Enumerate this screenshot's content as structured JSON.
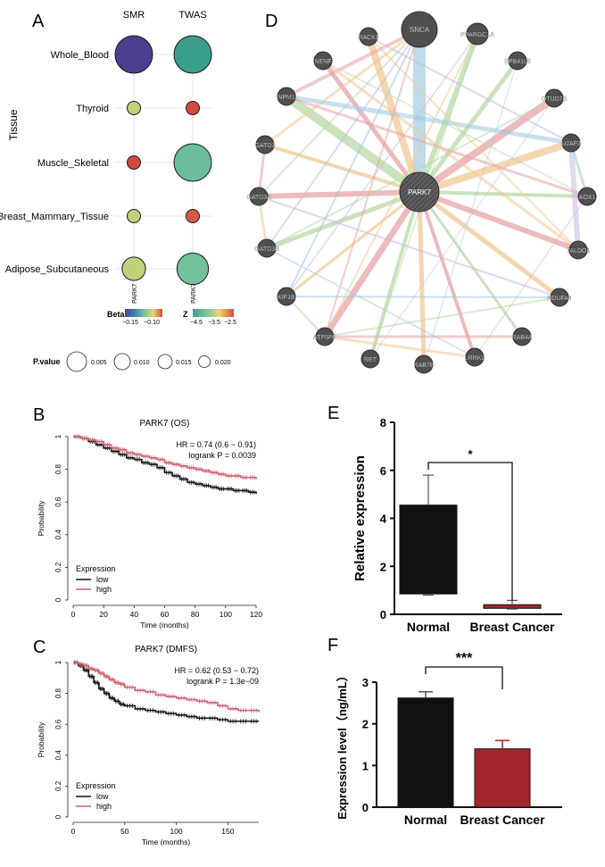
{
  "colors": {
    "black": "#111111",
    "pink": "#c9636e",
    "darkred": "#a3252d",
    "node": "#4f4f4f",
    "beta_low": "#4b3f8f",
    "beta_high": "#d2493f",
    "z_low": "#3a9e8c",
    "z_high": "#d2493f"
  },
  "panels": {
    "a": "A",
    "b": "B",
    "c": "C",
    "d": "D",
    "e": "E",
    "f": "F"
  },
  "legend_a": {
    "beta_title": "Beta",
    "beta_ticks": [
      "−0.15",
      "−0.10"
    ],
    "z_title": "Z",
    "z_ticks": [
      "−4.5",
      "−3.5",
      "−2.5"
    ],
    "p_title": "P.value",
    "p_values": [
      "0.005",
      "0.010",
      "0.015",
      "0.020"
    ]
  },
  "chart_data": [
    {
      "panel": "A",
      "type": "scatter",
      "xlabel": "",
      "ylabel": "Tissue",
      "x": [
        "SMR",
        "TWAS"
      ],
      "categories": [
        "Whole_Blood",
        "Thyroid",
        "Muscle_Skeletal",
        "Breast_Mammary_Tissue",
        "Adipose_Subcutaneous"
      ],
      "gene_labels": [
        "PARK7",
        "PARK7"
      ],
      "series": [
        {
          "name": "SMR",
          "size_p": [
            0.005,
            0.017,
            0.017,
            0.017,
            0.012
          ],
          "color_value": [
            -0.17,
            -0.11,
            -0.08,
            -0.11,
            -0.11
          ]
        },
        {
          "name": "TWAS",
          "size_p": [
            0.005,
            0.017,
            0.005,
            0.017,
            0.008
          ],
          "color_value": [
            -4.8,
            -2.5,
            -4.2,
            -2.6,
            -4.1
          ]
        }
      ]
    },
    {
      "panel": "D",
      "type": "network",
      "center": "PARK7",
      "nodes": [
        "SNCA",
        "PPARGC1A",
        "EPB41L5",
        "OTUD7B",
        "U2AF2",
        "AOX1",
        "TALDO1",
        "NDUFA4",
        "RAB4A",
        "LRRK2",
        "RAB7B",
        "RET",
        "ATP5PF",
        "KIF1B",
        "GATD3B",
        "GATD3A",
        "GATD1",
        "NPM1",
        "NENF",
        "RACK1"
      ]
    },
    {
      "panel": "B",
      "type": "line",
      "title": "PARK7 (OS)",
      "xlabel": "Time (months)",
      "ylabel": "Probability",
      "xlim": [
        0,
        120
      ],
      "ylim": [
        0,
        1
      ],
      "xticks": [
        0,
        20,
        40,
        60,
        80,
        100,
        120
      ],
      "yticks": [
        0.0,
        0.2,
        0.4,
        0.6,
        0.8,
        1.0
      ],
      "annotation": [
        "HR = 0.74 (0.6 − 0.91)",
        "logrank P = 0.0039"
      ],
      "legend_title": "Expression",
      "series": [
        {
          "name": "low",
          "x": [
            0,
            5,
            10,
            15,
            20,
            25,
            30,
            35,
            40,
            45,
            50,
            55,
            60,
            65,
            70,
            75,
            80,
            85,
            90,
            95,
            100,
            105,
            110,
            115,
            120
          ],
          "y": [
            1.0,
            0.99,
            0.97,
            0.95,
            0.93,
            0.91,
            0.89,
            0.87,
            0.86,
            0.84,
            0.83,
            0.81,
            0.78,
            0.76,
            0.74,
            0.72,
            0.71,
            0.7,
            0.69,
            0.68,
            0.68,
            0.67,
            0.67,
            0.66,
            0.65
          ]
        },
        {
          "name": "high",
          "x": [
            0,
            5,
            10,
            15,
            20,
            25,
            30,
            35,
            40,
            45,
            50,
            55,
            60,
            65,
            70,
            75,
            80,
            85,
            90,
            95,
            100,
            105,
            110,
            115,
            120
          ],
          "y": [
            1.0,
            0.99,
            0.98,
            0.97,
            0.95,
            0.93,
            0.92,
            0.9,
            0.89,
            0.88,
            0.87,
            0.86,
            0.84,
            0.83,
            0.82,
            0.81,
            0.8,
            0.79,
            0.78,
            0.77,
            0.76,
            0.76,
            0.75,
            0.75,
            0.74
          ]
        }
      ]
    },
    {
      "panel": "C",
      "type": "line",
      "title": "PARK7 (DMFS)",
      "xlabel": "Time (months)",
      "ylabel": "Probability",
      "xlim": [
        0,
        180
      ],
      "ylim": [
        0,
        1
      ],
      "xticks": [
        0,
        50,
        100,
        150
      ],
      "yticks": [
        0.0,
        0.2,
        0.4,
        0.6,
        0.8,
        1.0
      ],
      "annotation": [
        "HR = 0.62 (0.53 − 0.72)",
        "logrank P = 1.3e−09"
      ],
      "legend_title": "Expression",
      "series": [
        {
          "name": "low",
          "x": [
            0,
            5,
            10,
            15,
            20,
            25,
            30,
            35,
            40,
            45,
            50,
            60,
            70,
            80,
            90,
            100,
            110,
            120,
            130,
            140,
            150,
            160,
            170,
            180
          ],
          "y": [
            1.0,
            0.98,
            0.95,
            0.91,
            0.87,
            0.83,
            0.8,
            0.77,
            0.75,
            0.73,
            0.72,
            0.7,
            0.69,
            0.68,
            0.67,
            0.66,
            0.65,
            0.64,
            0.64,
            0.63,
            0.62,
            0.62,
            0.62,
            0.62
          ]
        },
        {
          "name": "high",
          "x": [
            0,
            5,
            10,
            15,
            20,
            25,
            30,
            35,
            40,
            45,
            50,
            60,
            70,
            80,
            90,
            100,
            110,
            120,
            130,
            140,
            150,
            160,
            170,
            180
          ],
          "y": [
            1.0,
            0.99,
            0.98,
            0.96,
            0.95,
            0.93,
            0.91,
            0.89,
            0.87,
            0.86,
            0.84,
            0.82,
            0.81,
            0.79,
            0.78,
            0.77,
            0.76,
            0.75,
            0.74,
            0.72,
            0.7,
            0.69,
            0.69,
            0.68
          ]
        }
      ]
    },
    {
      "panel": "E",
      "type": "bar",
      "categories": [
        "Normal",
        "Breast Cancer"
      ],
      "values": [
        4.55,
        0.4
      ],
      "box_low": [
        0.85,
        0.25
      ],
      "whisker_low": [
        0.8,
        0.22
      ],
      "whisker_high": [
        5.8,
        0.58
      ],
      "xlabel": "",
      "ylabel": "Relative expression",
      "ylim": [
        0,
        8
      ],
      "yticks": [
        0,
        2,
        4,
        6,
        8
      ],
      "significance": "*"
    },
    {
      "panel": "F",
      "type": "bar",
      "categories": [
        "Normal",
        "Breast Cancer"
      ],
      "values": [
        2.62,
        1.4
      ],
      "errors": [
        0.15,
        0.2
      ],
      "xlabel": "",
      "ylabel": "Expression level（ng/mL）",
      "ylim": [
        0,
        3
      ],
      "yticks": [
        0,
        1,
        2,
        3
      ],
      "significance": "***"
    }
  ]
}
